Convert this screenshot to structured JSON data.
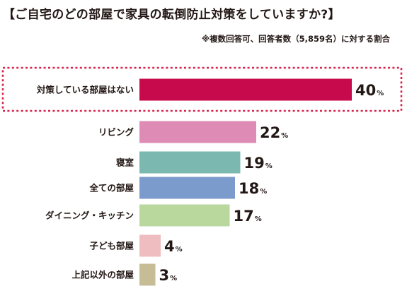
{
  "chart_data": {
    "type": "bar",
    "orientation": "horizontal",
    "title": "【ご自宅のどの部屋で家具の転倒防止対策をしていますか?】",
    "note": "※複数回答可、回答者数（5,859名）に対する割合",
    "unit": "%",
    "categories": [
      "対策している部屋はない",
      "リビング",
      "寝室",
      "全ての部屋",
      "ダイニング・キッチン",
      "子ども部屋",
      "上記以外の部屋"
    ],
    "values": [
      40,
      22,
      19,
      18,
      17,
      4,
      3
    ],
    "colors": [
      "#c70a4c",
      "#de8cb6",
      "#7bb8b0",
      "#7b9bcc",
      "#b9d89e",
      "#efbdbf",
      "#c6bd96"
    ],
    "highlight_index": 0,
    "highlight_border_color": "#d6234f"
  }
}
